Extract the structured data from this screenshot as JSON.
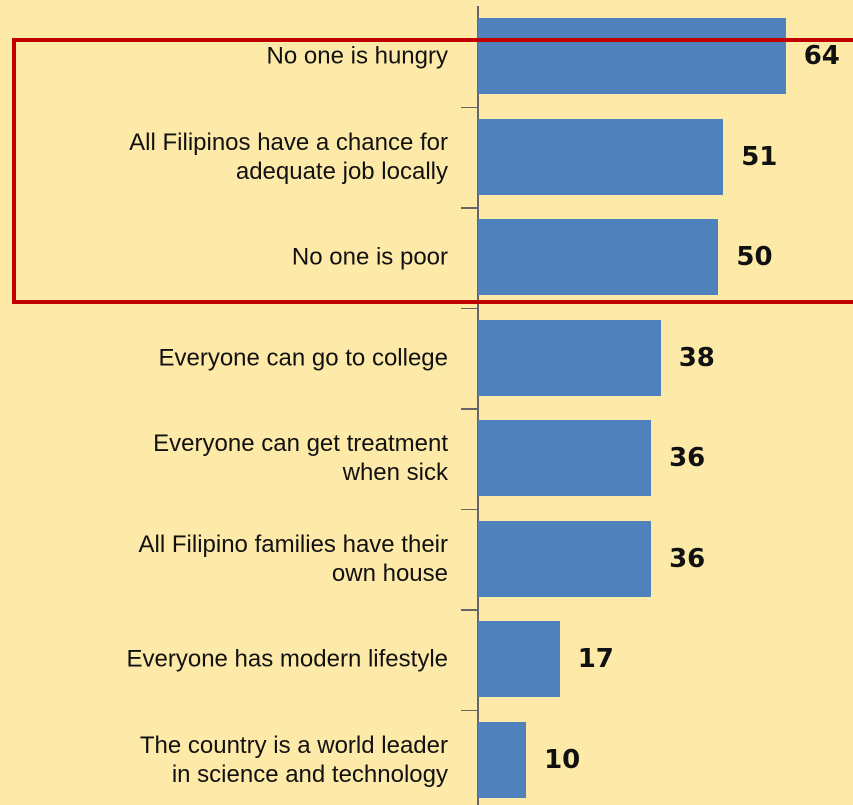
{
  "chart_data": {
    "type": "bar",
    "orientation": "horizontal",
    "categories": [
      "No one is hungry",
      "All Filipinos have a chance for\nadequate job locally",
      "No one is poor",
      "Everyone can go to college",
      "Everyone can get treatment\nwhen sick",
      "All Filipino families have their\nown house",
      "Everyone has modern lifestyle",
      "The country is a world leader\nin science and technology"
    ],
    "values": [
      64,
      51,
      50,
      38,
      36,
      36,
      17,
      10
    ],
    "color": "#4f81bd",
    "xlim": [
      0,
      78
    ]
  }
}
